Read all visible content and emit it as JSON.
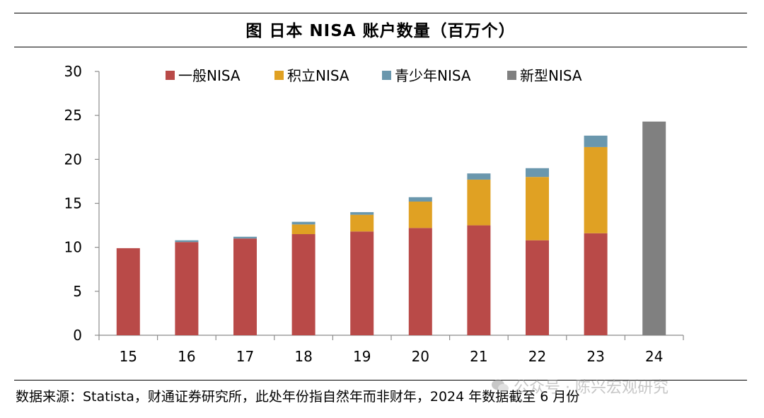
{
  "header": {
    "title": "图 日本 NISA 账户数量（百万个）"
  },
  "footer": {
    "source": "数据来源：Statista，财通证券研究所，此处年份指自然年而非财年，2024 年数据截至 6 月份"
  },
  "watermark": {
    "text": "公众号 · 陈兴宏观研究"
  },
  "chart_data": {
    "type": "bar",
    "stacked": true,
    "categories": [
      "15",
      "16",
      "17",
      "18",
      "19",
      "20",
      "21",
      "22",
      "23",
      "24"
    ],
    "series": [
      {
        "name": "一般NISA",
        "color": "#b94a48",
        "values": [
          9.9,
          10.6,
          11.0,
          11.5,
          11.8,
          12.2,
          12.5,
          10.8,
          11.6,
          0
        ]
      },
      {
        "name": "积立NISA",
        "color": "#e0a123",
        "values": [
          0,
          0,
          0,
          1.1,
          1.9,
          3.0,
          5.2,
          7.2,
          9.8,
          0
        ]
      },
      {
        "name": "青少年NISA",
        "color": "#6a97ad",
        "values": [
          0,
          0.2,
          0.2,
          0.3,
          0.3,
          0.5,
          0.7,
          1.0,
          1.3,
          0
        ]
      },
      {
        "name": "新型NISA",
        "color": "#808080",
        "values": [
          0,
          0,
          0,
          0,
          0,
          0,
          0,
          0,
          0,
          24.3
        ]
      }
    ],
    "ylim": [
      0,
      30
    ],
    "yticks": [
      0,
      5,
      10,
      15,
      20,
      25,
      30
    ],
    "legend_position": "top",
    "grid": false
  }
}
